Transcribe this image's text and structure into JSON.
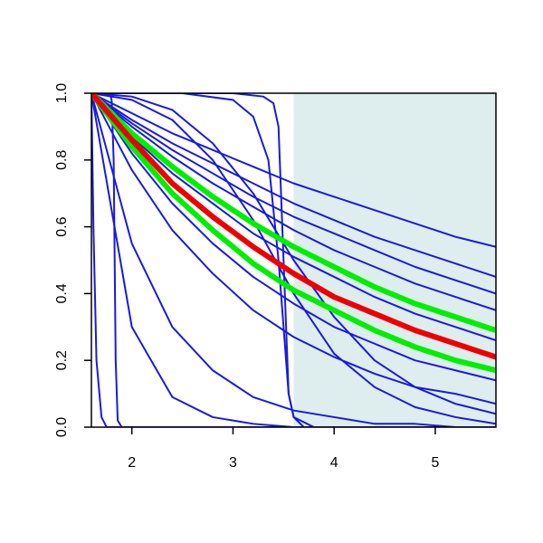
{
  "chart_data": {
    "type": "line",
    "xlim": [
      1.6,
      5.6
    ],
    "ylim": [
      0,
      1
    ],
    "xticks": [
      2,
      3,
      4,
      5
    ],
    "yticks": [
      {
        "value": 0,
        "label": "0.0"
      },
      {
        "value": 0.2,
        "label": "0.2"
      },
      {
        "value": 0.4,
        "label": "0.4"
      },
      {
        "value": 0.6,
        "label": "0.6"
      },
      {
        "value": 0.8,
        "label": "0.8"
      },
      {
        "value": 1,
        "label": "1.0"
      }
    ],
    "shade": {
      "xlim": [
        3.6,
        5.6
      ],
      "color": "#deeded"
    },
    "series": [
      {
        "color": "#1a1adc",
        "line_width": 2,
        "x": [
          1.6,
          2.0,
          2.4,
          2.8,
          3.2,
          3.6,
          4.0,
          4.4,
          4.8,
          5.2,
          5.6
        ],
        "values": [
          1,
          0.94,
          0.88,
          0.83,
          0.78,
          0.73,
          0.69,
          0.65,
          0.61,
          0.57,
          0.54
        ]
      },
      {
        "color": "#1a1adc",
        "line_width": 2,
        "x": [
          1.6,
          2.0,
          2.4,
          2.8,
          3.2,
          3.6,
          4.0,
          4.4,
          4.8,
          5.2,
          5.6
        ],
        "values": [
          1,
          0.92,
          0.85,
          0.79,
          0.73,
          0.67,
          0.62,
          0.57,
          0.53,
          0.49,
          0.45
        ]
      },
      {
        "color": "#1a1adc",
        "line_width": 2,
        "x": [
          1.6,
          2.0,
          2.4,
          2.8,
          3.2,
          3.6,
          4.0,
          4.4,
          4.8,
          5.2,
          5.6
        ],
        "values": [
          1,
          0.91,
          0.83,
          0.76,
          0.69,
          0.63,
          0.58,
          0.53,
          0.48,
          0.44,
          0.4
        ]
      },
      {
        "color": "#1a1adc",
        "line_width": 2,
        "x": [
          1.6,
          2.0,
          2.4,
          2.8,
          3.2,
          3.6,
          4.0,
          4.4,
          4.8,
          5.2,
          5.6
        ],
        "values": [
          1,
          0.9,
          0.81,
          0.73,
          0.66,
          0.59,
          0.53,
          0.48,
          0.43,
          0.39,
          0.35
        ]
      },
      {
        "color": "#1a1adc",
        "line_width": 2,
        "x": [
          1.6,
          2.0,
          2.4,
          2.8,
          3.2,
          3.6,
          4.0,
          4.4,
          4.8,
          5.2,
          5.6
        ],
        "values": [
          1,
          0.87,
          0.76,
          0.67,
          0.58,
          0.51,
          0.45,
          0.39,
          0.34,
          0.3,
          0.26
        ]
      },
      {
        "color": "#1a1adc",
        "line_width": 2,
        "x": [
          1.6,
          2.0,
          2.4,
          2.8,
          3.2,
          3.6,
          4.0,
          4.4,
          4.8,
          5.2,
          5.6
        ],
        "values": [
          1,
          0.82,
          0.67,
          0.55,
          0.45,
          0.37,
          0.3,
          0.25,
          0.2,
          0.17,
          0.14
        ]
      },
      {
        "color": "#1a1adc",
        "line_width": 2,
        "x": [
          1.6,
          2.0,
          2.4,
          2.8,
          3.2,
          3.6,
          4.0,
          4.4,
          4.8,
          5.2,
          5.6
        ],
        "values": [
          1,
          0.77,
          0.59,
          0.46,
          0.35,
          0.27,
          0.21,
          0.16,
          0.12,
          0.1,
          0.07
        ]
      },
      {
        "color": "#1a1adc",
        "line_width": 2,
        "x": [
          1.6,
          2.0,
          2.4,
          2.8,
          3.2,
          3.6,
          4.0,
          4.4,
          4.8,
          5.2,
          5.6
        ],
        "values": [
          1,
          0.99,
          0.95,
          0.85,
          0.7,
          0.5,
          0.33,
          0.2,
          0.12,
          0.07,
          0.04
        ]
      },
      {
        "color": "#1a1adc",
        "line_width": 2,
        "x": [
          1.6,
          2.0,
          2.4,
          2.8,
          3.2,
          3.6,
          4.0,
          4.4,
          4.8,
          5.2,
          5.6
        ],
        "values": [
          1,
          0.98,
          0.92,
          0.8,
          0.62,
          0.4,
          0.22,
          0.12,
          0.06,
          0.03,
          0.01
        ]
      },
      {
        "color": "#1a1adc",
        "line_width": 2,
        "x": [
          1.6,
          2.0,
          2.4,
          2.8,
          3.2,
          3.6,
          4.0,
          4.4,
          4.8,
          5.2,
          5.6
        ],
        "values": [
          1,
          0.3,
          0.09,
          0.03,
          0.01,
          0,
          0,
          0,
          0,
          0,
          0
        ]
      },
      {
        "color": "#1a1adc",
        "line_width": 2,
        "x": [
          1.6,
          2.0,
          2.4,
          2.8,
          3.2,
          3.6,
          4.0,
          4.4,
          4.8,
          5.2,
          5.6
        ],
        "values": [
          1,
          0.55,
          0.3,
          0.17,
          0.09,
          0.05,
          0.03,
          0.01,
          0.01,
          0,
          0
        ]
      },
      {
        "color": "#1a1adc",
        "line_width": 2,
        "x": [
          1.6,
          1.62,
          1.65,
          1.7,
          1.75,
          5.6
        ],
        "values": [
          1,
          0.6,
          0.2,
          0.03,
          0,
          0
        ]
      },
      {
        "color": "#1a1adc",
        "line_width": 2,
        "x": [
          1.6,
          1.78,
          1.8,
          1.82,
          1.84,
          1.86,
          1.9,
          5.6
        ],
        "values": [
          1,
          1,
          0.98,
          0.8,
          0.2,
          0.02,
          0,
          0
        ]
      },
      {
        "color": "#1a1adc",
        "line_width": 2,
        "x": [
          1.6,
          2.0,
          3.0,
          3.3,
          3.4,
          3.45,
          3.5,
          3.55,
          3.6,
          3.7,
          5.6
        ],
        "values": [
          1,
          1,
          1,
          0.99,
          0.97,
          0.9,
          0.5,
          0.1,
          0.03,
          0,
          0
        ]
      },
      {
        "color": "#1a1adc",
        "line_width": 2,
        "x": [
          1.6,
          2.5,
          3.0,
          3.2,
          3.35,
          3.45,
          3.55,
          3.6,
          3.8,
          5.6
        ],
        "values": [
          1,
          1,
          0.98,
          0.93,
          0.8,
          0.5,
          0.1,
          0.03,
          0,
          0
        ]
      },
      {
        "color": "#00ee00",
        "line_width": 6,
        "x": [
          1.6,
          2.0,
          2.4,
          2.8,
          3.2,
          3.6,
          4.0,
          4.4,
          4.8,
          5.2,
          5.6
        ],
        "values": [
          1,
          0.88,
          0.78,
          0.69,
          0.61,
          0.54,
          0.48,
          0.42,
          0.37,
          0.33,
          0.29
        ]
      },
      {
        "color": "#00ee00",
        "line_width": 6,
        "x": [
          1.6,
          2.0,
          2.4,
          2.8,
          3.2,
          3.6,
          4.0,
          4.4,
          4.8,
          5.2,
          5.6
        ],
        "values": [
          1,
          0.84,
          0.7,
          0.59,
          0.49,
          0.41,
          0.35,
          0.29,
          0.24,
          0.2,
          0.17
        ]
      },
      {
        "color": "#ee0000",
        "line_width": 6,
        "x": [
          1.6,
          2.0,
          2.4,
          2.8,
          3.2,
          3.6,
          4.0,
          4.4,
          4.8,
          5.2,
          5.6
        ],
        "values": [
          1,
          0.86,
          0.73,
          0.63,
          0.54,
          0.46,
          0.39,
          0.34,
          0.29,
          0.25,
          0.21
        ]
      }
    ]
  }
}
